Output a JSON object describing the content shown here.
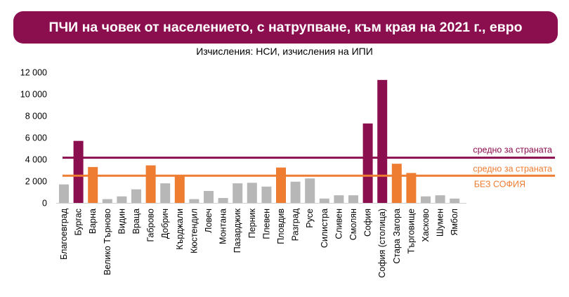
{
  "title": "ПЧИ на човек от населението, с натрупване, към края на 2021 г., евро",
  "subtitle": "Изчисления: НСИ, изчисления на ИПИ",
  "colors": {
    "title_bg": "#8b0e4f",
    "highlight": "#8b0e4f",
    "orange": "#ee7d32",
    "grey": "#b7b7b7",
    "national_line": "#8b0e4f",
    "no_sofia_line": "#ee7d32"
  },
  "chart_data": {
    "type": "bar",
    "title": "ПЧИ на човек от населението, с натрупване, към края на 2021 г., евро",
    "subtitle": "Изчисления: НСИ, изчисления на ИПИ",
    "ylim": [
      0,
      12000
    ],
    "yticks": [
      "0",
      "2 000",
      "4 000",
      "6 000",
      "8 000",
      "10 000",
      "12 000"
    ],
    "ytick_values": [
      0,
      2000,
      4000,
      6000,
      8000,
      10000,
      12000
    ],
    "grid": false,
    "categories": [
      "Благоевград",
      "Бургас",
      "Варна",
      "Велико Търново",
      "Видин",
      "Враца",
      "Габрово",
      "Добрич",
      "Кърджали",
      "Кюстендил",
      "Ловеч",
      "Монтана",
      "Пазарджик",
      "Перник",
      "Плевен",
      "Пловдив",
      "Разград",
      "Русе",
      "Силистра",
      "Сливен",
      "Смолян",
      "София",
      "София (столица)",
      "Стара Загора",
      "Търговище",
      "Хасково",
      "Шумен",
      "Ямбол"
    ],
    "values": [
      1700,
      5700,
      3300,
      350,
      600,
      1250,
      3450,
      1800,
      2450,
      350,
      1100,
      450,
      1800,
      1850,
      1500,
      3250,
      1950,
      2250,
      400,
      700,
      700,
      7300,
      11300,
      3600,
      2750,
      600,
      700,
      400
    ],
    "bar_colors": [
      "grey",
      "highlight",
      "orange",
      "grey",
      "grey",
      "grey",
      "orange",
      "grey",
      "orange",
      "grey",
      "grey",
      "grey",
      "grey",
      "grey",
      "grey",
      "orange",
      "grey",
      "grey",
      "grey",
      "grey",
      "grey",
      "highlight",
      "highlight",
      "orange",
      "orange",
      "grey",
      "grey",
      "grey"
    ],
    "reference_lines": [
      {
        "label": "средно за страната",
        "value": 4150,
        "color": "national_line"
      },
      {
        "label": "средно за страната",
        "label2": "БЕЗ СОФИЯ",
        "value": 2500,
        "color": "no_sofia_line"
      }
    ]
  }
}
